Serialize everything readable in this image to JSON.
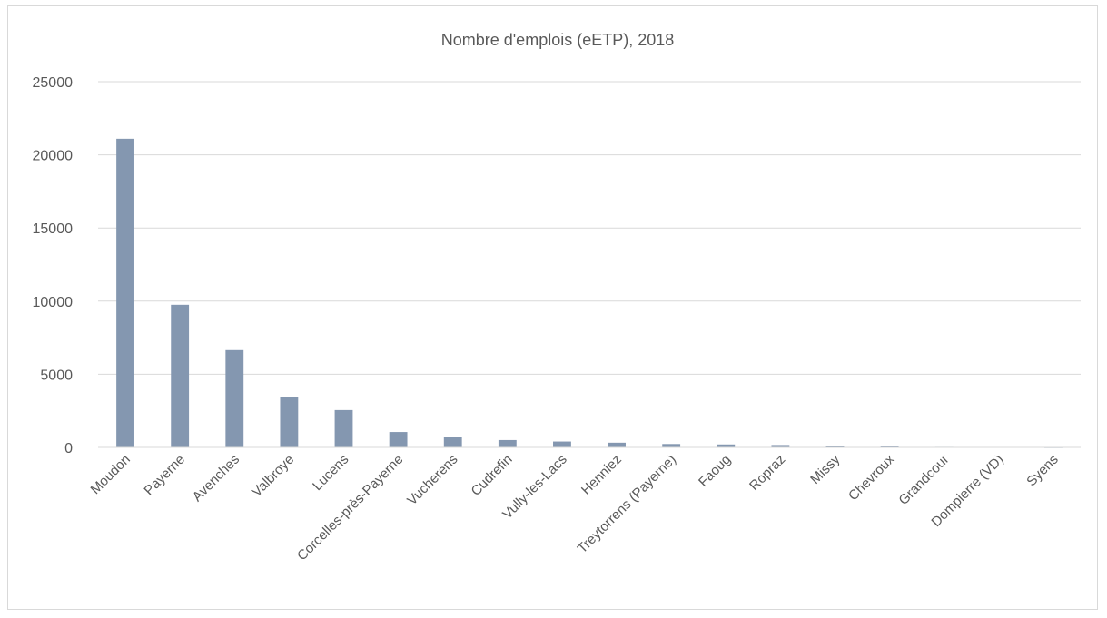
{
  "chart_data": {
    "type": "bar",
    "title": "Nombre d'emplois (eETP), 2018",
    "xlabel": "",
    "ylabel": "",
    "ylim": [
      0,
      25000
    ],
    "yticks": [
      0,
      5000,
      10000,
      15000,
      20000,
      25000
    ],
    "grid": true,
    "legend": "none",
    "bar_color": "#8497b0",
    "grid_color": "#d9d9d9",
    "categories": [
      "Moudon",
      "Payerne",
      "Avenches",
      "Valbroye",
      "Lucens",
      "Corcelles-près-Payerne",
      "Vucherens",
      "Cudrefin",
      "Vully-les-Lacs",
      "Henniez",
      "Treytorrens (Payerne)",
      "Faoug",
      "Ropraz",
      "Missy",
      "Chevroux",
      "Grandcour",
      "Dompierre (VD)",
      "Syens"
    ],
    "values": [
      21100,
      9750,
      6650,
      3450,
      2550,
      1050,
      700,
      500,
      400,
      320,
      230,
      200,
      160,
      110,
      60,
      35,
      20,
      10
    ]
  }
}
